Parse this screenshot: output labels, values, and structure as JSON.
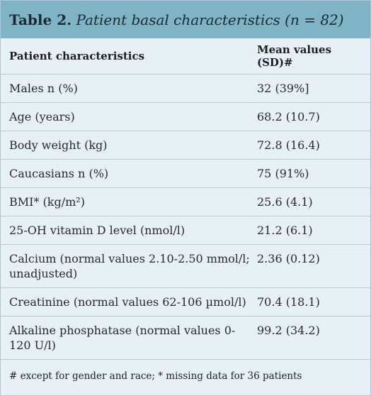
{
  "table": {
    "label": "Table 2.",
    "caption": "Patient basal characteristics (n = 82)",
    "headers": [
      "Patient characteristics",
      "Mean values (SD)#"
    ],
    "rows": [
      {
        "characteristic": "Males n (%)",
        "value": "32 (39%]"
      },
      {
        "characteristic": "Age (years)",
        "value": "68.2 (10.7)"
      },
      {
        "characteristic": "Body weight (kg)",
        "value": "72.8 (16.4)"
      },
      {
        "characteristic": "Caucasians n (%)",
        "value": "75 (91%)"
      },
      {
        "characteristic": "BMI* (kg/m²)",
        "value": "25.6 (4.1)"
      },
      {
        "characteristic": "25-OH vitamin D level (nmol/l)",
        "value": "21.2 (6.1)"
      },
      {
        "characteristic": "Calcium (normal values 2.10-2.50 mmol/l; unadjusted)",
        "value": "2.36 (0.12)"
      },
      {
        "characteristic": "Creatinine (normal values 62-106 µmol/l)",
        "value": "70.4 (18.1)"
      },
      {
        "characteristic": "Alkaline phosphatase (normal values 0-120 U/l)",
        "value": "99.2 (34.2)"
      }
    ],
    "footnote": "# except for gender and race; * missing data for 36 patients"
  },
  "colors": {
    "title_background": "#7fb3c6",
    "table_background": "#e7f0f4",
    "rule": "#b6cdd5"
  }
}
